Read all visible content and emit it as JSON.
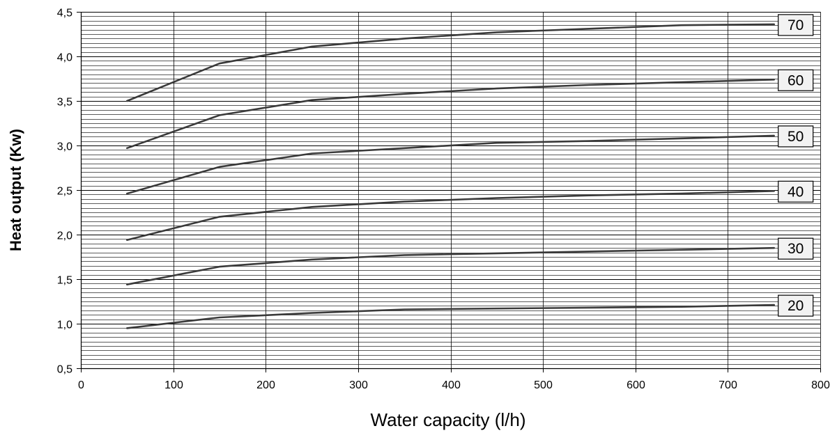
{
  "chart_data": {
    "type": "line",
    "title": "",
    "xlabel": "Water capacity (l/h)",
    "ylabel": "Heat output (Kw)",
    "xlim": [
      0,
      800
    ],
    "ylim": [
      0.5,
      4.5
    ],
    "x_ticks": [
      0,
      100,
      200,
      300,
      400,
      500,
      600,
      700,
      800
    ],
    "x_tick_labels": [
      "0",
      "100",
      "200",
      "300",
      "400",
      "500",
      "600",
      "700",
      "800"
    ],
    "y_ticks": [
      0.5,
      1.0,
      1.5,
      2.0,
      2.5,
      3.0,
      3.5,
      4.0,
      4.5
    ],
    "y_tick_labels": [
      "0,5",
      "1,0",
      "1,5",
      "2,0",
      "2,5",
      "3,0",
      "3,5",
      "4,0",
      "4,5"
    ],
    "grid": true,
    "x": [
      50,
      150,
      250,
      350,
      450,
      550,
      650,
      750
    ],
    "series": [
      {
        "name": "20",
        "values": [
          0.95,
          1.07,
          1.12,
          1.16,
          1.17,
          1.18,
          1.19,
          1.21
        ]
      },
      {
        "name": "30",
        "values": [
          1.44,
          1.64,
          1.72,
          1.77,
          1.79,
          1.81,
          1.83,
          1.85
        ]
      },
      {
        "name": "40",
        "values": [
          1.94,
          2.2,
          2.31,
          2.37,
          2.41,
          2.44,
          2.46,
          2.49
        ]
      },
      {
        "name": "50",
        "values": [
          2.46,
          2.76,
          2.91,
          2.97,
          3.03,
          3.05,
          3.08,
          3.11
        ]
      },
      {
        "name": "60",
        "values": [
          2.97,
          3.34,
          3.51,
          3.58,
          3.64,
          3.68,
          3.71,
          3.74
        ]
      },
      {
        "name": "70",
        "values": [
          3.5,
          3.92,
          4.11,
          4.2,
          4.27,
          4.31,
          4.35,
          4.36
        ]
      }
    ],
    "line_color": "#3a3a3a",
    "label_box_color": "#f2f2f2"
  }
}
